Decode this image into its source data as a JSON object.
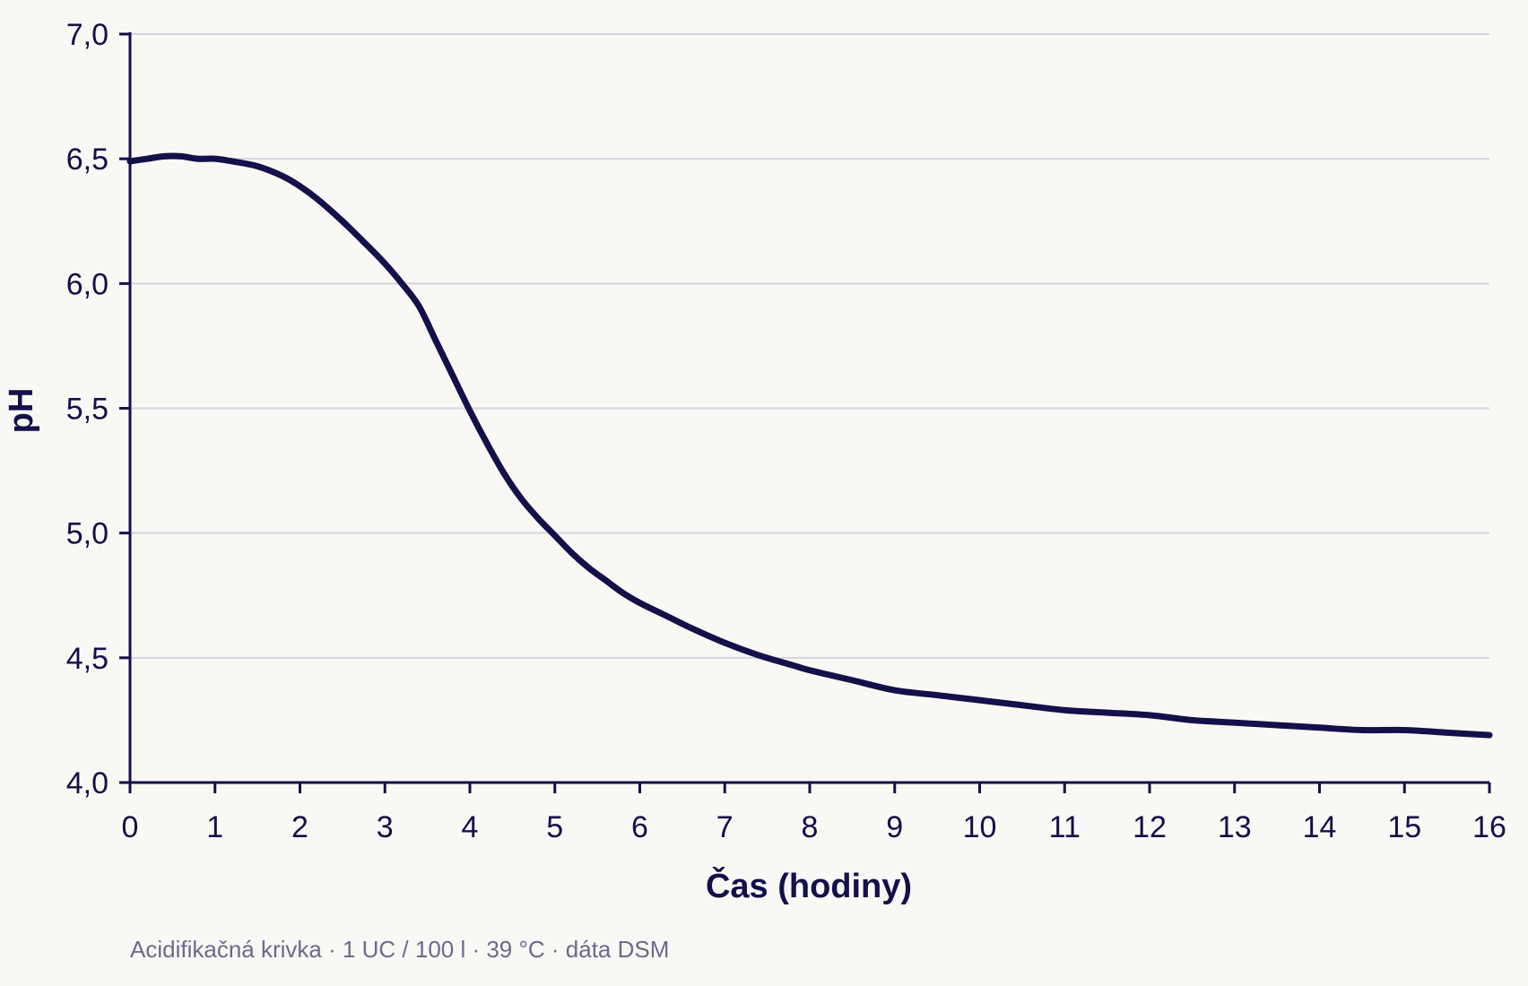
{
  "chart_data": {
    "type": "line",
    "xlabel": "Čas (hodiny)",
    "ylabel": "pH",
    "xlim": [
      0,
      16
    ],
    "ylim": [
      4.0,
      7.0
    ],
    "x_ticks": [
      0,
      1,
      2,
      3,
      4,
      5,
      6,
      7,
      8,
      9,
      10,
      11,
      12,
      13,
      14,
      15,
      16
    ],
    "x_tick_labels": [
      "0",
      "1",
      "2",
      "3",
      "4",
      "5",
      "6",
      "7",
      "8",
      "9",
      "10",
      "11",
      "12",
      "13",
      "14",
      "15",
      "16"
    ],
    "y_ticks": [
      4.0,
      4.5,
      5.0,
      5.5,
      6.0,
      6.5,
      7.0
    ],
    "y_tick_labels": [
      "4,0",
      "4,5",
      "5,0",
      "5,5",
      "6,0",
      "6,5",
      "7,0"
    ],
    "grid": "horizontal",
    "legend": "none",
    "series": [
      {
        "color": "#13104a",
        "x": [
          0,
          0.2,
          0.4,
          0.6,
          0.8,
          1.0,
          1.2,
          1.5,
          1.8,
          2.0,
          2.2,
          2.5,
          2.8,
          3.0,
          3.2,
          3.4,
          3.6,
          3.8,
          4.0,
          4.2,
          4.4,
          4.6,
          4.8,
          5.0,
          5.2,
          5.4,
          5.6,
          5.8,
          6.0,
          6.3,
          6.6,
          7.0,
          7.4,
          7.8,
          8.0,
          8.5,
          9.0,
          9.5,
          10.0,
          10.5,
          11.0,
          11.5,
          12.0,
          12.5,
          13.0,
          13.5,
          14.0,
          14.5,
          15.0,
          15.5,
          16.0
        ],
        "y": [
          6.49,
          6.5,
          6.51,
          6.51,
          6.5,
          6.5,
          6.49,
          6.47,
          6.43,
          6.39,
          6.34,
          6.25,
          6.15,
          6.08,
          6.0,
          5.91,
          5.77,
          5.63,
          5.49,
          5.36,
          5.24,
          5.14,
          5.06,
          4.99,
          4.92,
          4.86,
          4.81,
          4.76,
          4.72,
          4.67,
          4.62,
          4.56,
          4.51,
          4.47,
          4.45,
          4.41,
          4.37,
          4.35,
          4.33,
          4.31,
          4.29,
          4.28,
          4.27,
          4.25,
          4.24,
          4.23,
          4.22,
          4.21,
          4.21,
          4.2,
          4.19
        ]
      }
    ],
    "caption": "Acidifikačná krivka · 1 UC / 100 l · 39 °C · dáta DSM"
  }
}
